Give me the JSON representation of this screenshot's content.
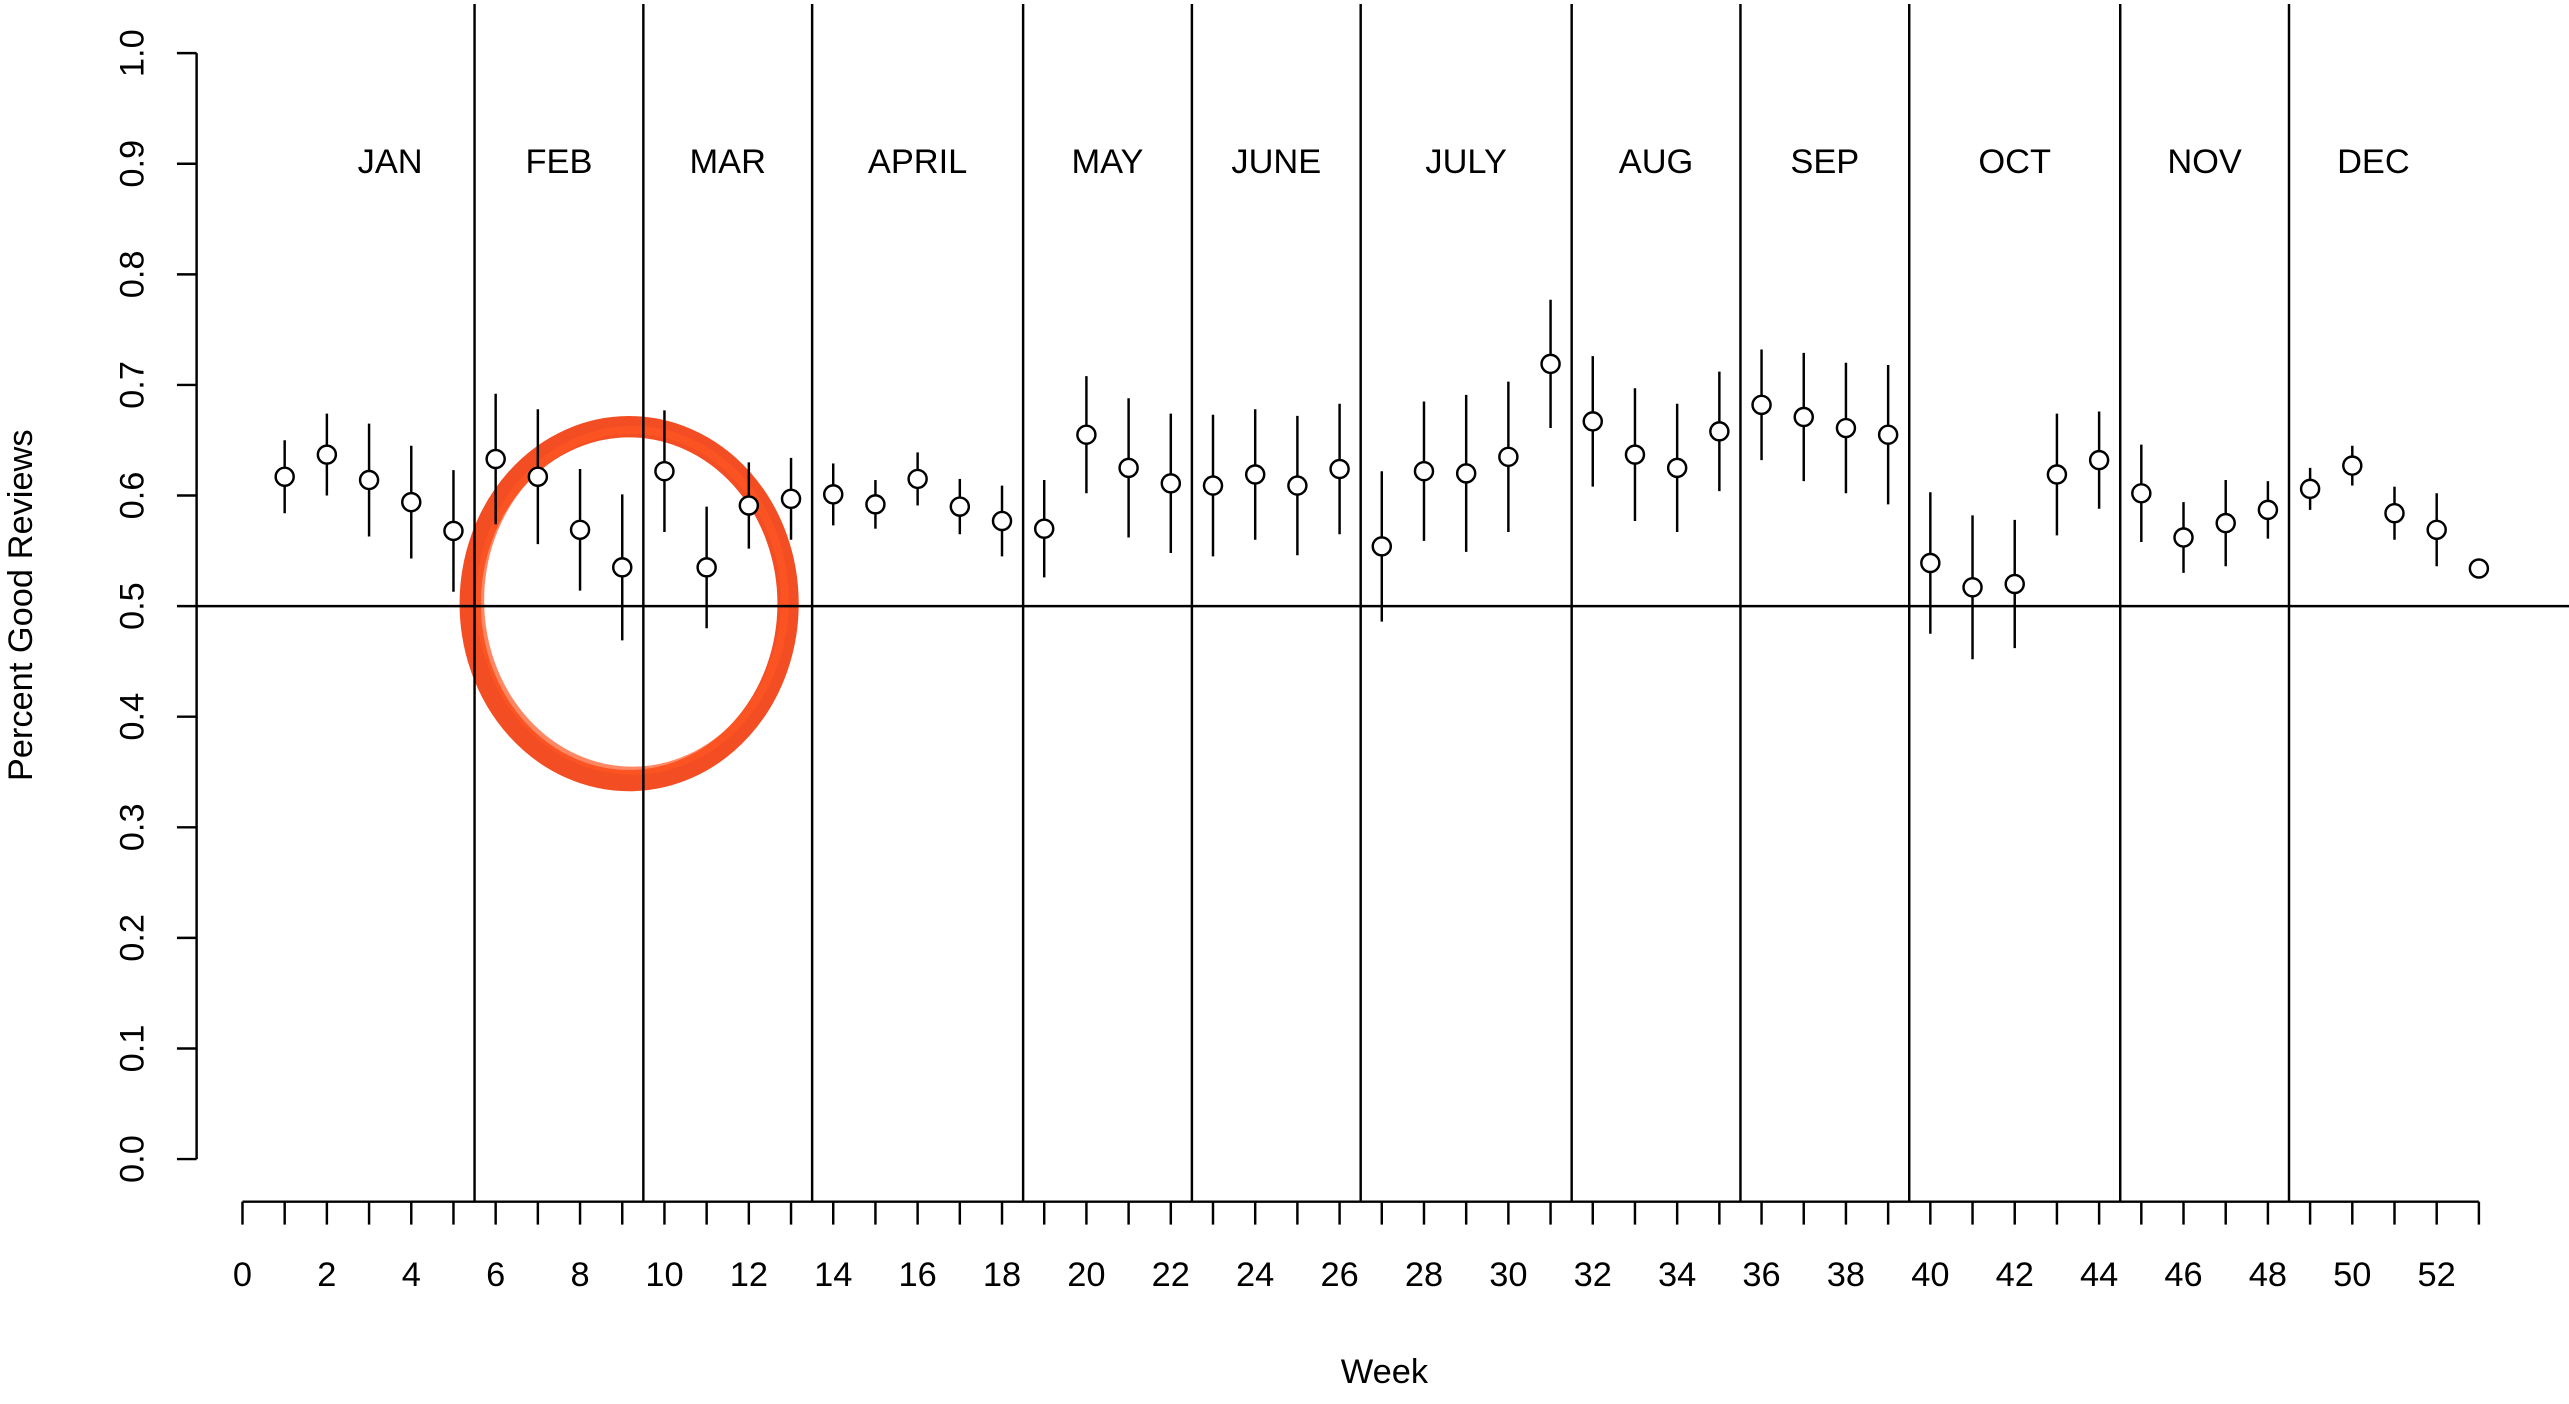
{
  "chart_data": {
    "type": "scatter",
    "x_label": "Week",
    "y_label": "Percent Good Reviews",
    "x": [
      1,
      2,
      3,
      4,
      5,
      6,
      7,
      8,
      9,
      10,
      11,
      12,
      13,
      14,
      15,
      16,
      17,
      18,
      19,
      20,
      21,
      22,
      23,
      24,
      25,
      26,
      27,
      28,
      29,
      30,
      31,
      32,
      33,
      34,
      35,
      36,
      37,
      38,
      39,
      40,
      41,
      42,
      43,
      44,
      45,
      46,
      47,
      48,
      49,
      50,
      51,
      52,
      53
    ],
    "values": [
      0.617,
      0.637,
      0.614,
      0.594,
      0.568,
      0.633,
      0.617,
      0.569,
      0.535,
      0.622,
      0.535,
      0.591,
      0.597,
      0.601,
      0.592,
      0.615,
      0.59,
      0.577,
      0.57,
      0.655,
      0.625,
      0.611,
      0.609,
      0.619,
      0.609,
      0.624,
      0.554,
      0.622,
      0.62,
      0.635,
      0.719,
      0.667,
      0.637,
      0.625,
      0.658,
      0.682,
      0.671,
      0.661,
      0.655,
      0.539,
      0.517,
      0.52,
      0.619,
      0.632,
      0.602,
      0.562,
      0.575,
      0.587,
      0.606,
      0.627,
      0.584,
      0.569,
      0.534
    ],
    "errors": [
      0.033,
      0.037,
      0.051,
      0.051,
      0.055,
      0.059,
      0.061,
      0.055,
      0.066,
      0.055,
      0.055,
      0.039,
      0.037,
      0.028,
      0.022,
      0.024,
      0.025,
      0.032,
      0.044,
      0.053,
      0.063,
      0.063,
      0.064,
      0.059,
      0.063,
      0.059,
      0.068,
      0.063,
      0.071,
      0.068,
      0.058,
      0.059,
      0.06,
      0.058,
      0.054,
      0.05,
      0.058,
      0.059,
      0.063,
      0.064,
      0.065,
      0.058,
      0.055,
      0.044,
      0.044,
      0.032,
      0.039,
      0.026,
      0.019,
      0.018,
      0.024,
      0.033,
      0
    ],
    "color": "#000000",
    "xlim": [
      0,
      53
    ],
    "xticks": [
      0,
      2,
      4,
      6,
      8,
      10,
      12,
      14,
      16,
      18,
      20,
      22,
      24,
      26,
      28,
      30,
      32,
      34,
      36,
      38,
      40,
      42,
      44,
      46,
      48,
      50,
      52
    ],
    "xminorticks": [
      1,
      3,
      5,
      7,
      9,
      11,
      13,
      15,
      17,
      19,
      21,
      23,
      25,
      27,
      29,
      31,
      33,
      35,
      37,
      39,
      41,
      43,
      45,
      47,
      49,
      51,
      53
    ],
    "ylim": [
      0,
      1
    ],
    "yticks": [
      {
        "value": 0,
        "label": "0.0"
      },
      {
        "value": 0.1,
        "label": "0.1"
      },
      {
        "value": 0.2,
        "label": "0.2"
      },
      {
        "value": 0.3,
        "label": "0.3"
      },
      {
        "value": 0.4,
        "label": "0.4"
      },
      {
        "value": 0.5,
        "label": "0.5"
      },
      {
        "value": 0.6,
        "label": "0.6"
      },
      {
        "value": 0.7,
        "label": "0.7"
      },
      {
        "value": 0.8,
        "label": "0.8"
      },
      {
        "value": 0.9,
        "label": "0.9"
      },
      {
        "value": 1,
        "label": "1.0"
      }
    ],
    "reference_line": 0.5,
    "dividers": [
      5.5,
      9.5,
      13.5,
      18.5,
      22.5,
      26.5,
      31.5,
      35.5,
      39.5,
      44.5,
      48.5
    ],
    "months": [
      "JAN",
      "FEB",
      "MAR",
      "APRIL",
      "MAY",
      "JUNE",
      "JULY",
      "AUG",
      "SEP",
      "OCT",
      "NOV",
      "DEC"
    ]
  }
}
